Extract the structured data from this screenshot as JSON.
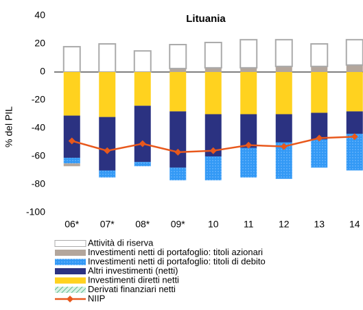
{
  "chart_data": {
    "type": "bar",
    "title": "Lituania",
    "y_label": "% del PIL",
    "categories": [
      "06*",
      "07*",
      "08*",
      "09*",
      "10",
      "11",
      "12",
      "13",
      "14"
    ],
    "series": [
      {
        "name": "Attività di riserva",
        "color": "#ffffff",
        "values": [
          18,
          20,
          15,
          17,
          18,
          20,
          19,
          16,
          18
        ]
      },
      {
        "name": "Investimenti netti di portafoglio: titoli azionari",
        "color": "#b3a69c",
        "values": [
          -2,
          0,
          0,
          2.5,
          3,
          3,
          4,
          4,
          5
        ]
      },
      {
        "name": "Investimenti netti di portafoglio: titoli di debito",
        "color": "#3399f5",
        "values": [
          -4,
          -5,
          -3,
          -9,
          -17,
          -21,
          -26,
          -20,
          -26
        ]
      },
      {
        "name": "Altri investimenti (netti)",
        "color": "#2b3281",
        "values": [
          -30,
          -38,
          -40,
          -40,
          -30,
          -24,
          -20,
          -19,
          -16
        ]
      },
      {
        "name": "Investimenti diretti netti",
        "color": "#ffd21f",
        "values": [
          -31,
          -32,
          -24,
          -28,
          -30,
          -30,
          -30,
          -29,
          -28
        ]
      },
      {
        "name": "Derivati finanziari netti",
        "color": "#8fd3b0",
        "values": [
          0,
          0,
          0,
          0,
          0,
          0,
          0,
          0,
          0
        ]
      },
      {
        "name": "NIIP",
        "color": "#e8581c",
        "type": "line",
        "values": [
          -49,
          -56,
          -51,
          -57,
          -56,
          -52,
          -53,
          -47,
          -46
        ]
      }
    ],
    "ylim": [
      -100,
      40
    ],
    "yticks": [
      -100,
      -80,
      -60,
      -40,
      -20,
      0,
      20,
      40
    ]
  }
}
